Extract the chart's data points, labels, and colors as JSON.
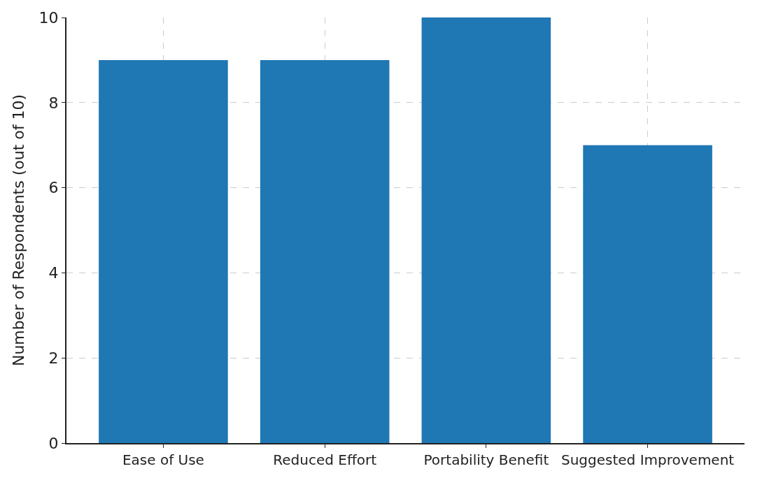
{
  "chart_data": {
    "type": "bar",
    "ylabel": "Number of Respondents (out of 10)",
    "categories": [
      "Ease of Use",
      "Reduced Effort",
      "Portability Benefit",
      "Suggested Improvement"
    ],
    "values": [
      9,
      9,
      10,
      7
    ],
    "color": "#1f77b4",
    "ylim": [
      0,
      10
    ],
    "yticks": [
      0,
      2,
      4,
      6,
      8,
      10
    ],
    "grid": true
  }
}
